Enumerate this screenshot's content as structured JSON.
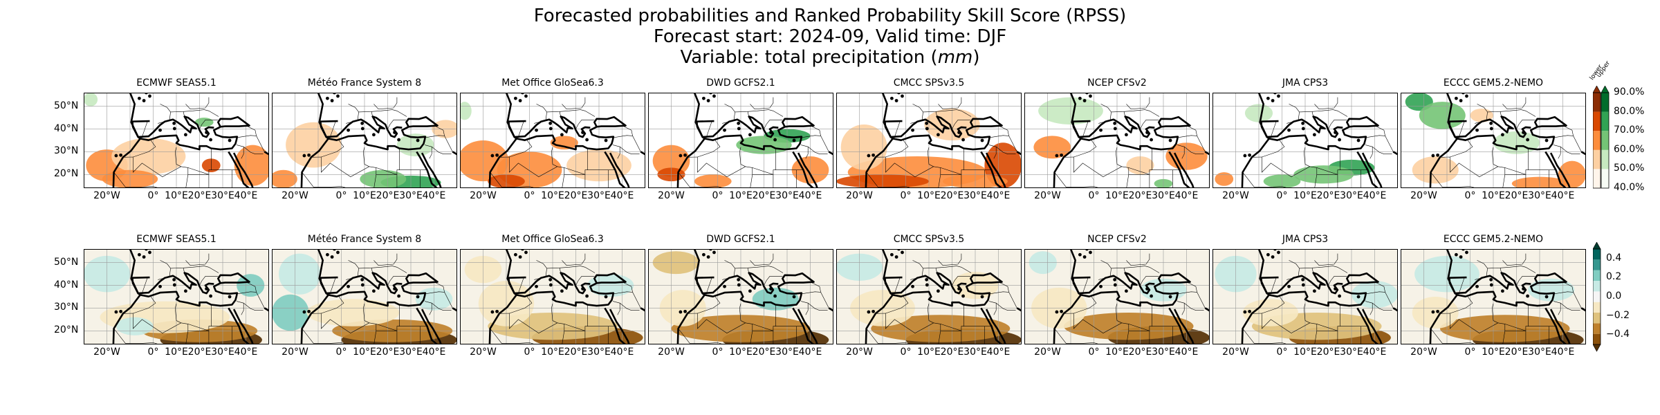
{
  "title": {
    "line1": "Forecasted probabilities and Ranked Probability Skill Score (RPSS)",
    "line2": "Forecast start: 2024-09, Valid time: DJF",
    "line3_prefix": "Variable: total precipitation (",
    "line3_unit": "mm",
    "line3_suffix": ")"
  },
  "models": [
    "ECMWF SEAS5.1",
    "Météo France System 8",
    "Met Office GloSea6.3",
    "DWD GCFS2.1",
    "CMCC SPSv3.5",
    "NCEP CFSv2",
    "JMA CPS3",
    "ECCC GEM5.2-NEMO"
  ],
  "map_axes": {
    "lat_ticks": [
      "50°N",
      "40°N",
      "30°N",
      "20°N"
    ],
    "lon_ticks": [
      "20°W",
      "0°",
      "10°E",
      "20°E",
      "30°E",
      "40°E"
    ],
    "lon_range": [
      -30,
      50
    ],
    "lat_range": [
      14,
      56
    ]
  },
  "probability_colorbar": {
    "category_labels": [
      "lower",
      "upper"
    ],
    "tick_labels": [
      "90.0%",
      "80.0%",
      "70.0%",
      "60.0%",
      "50.0%",
      "40.0%"
    ],
    "upper_colors": [
      "#f7fcf5",
      "#c7e9c0",
      "#74c476",
      "#31a354",
      "#006d2c"
    ],
    "lower_colors": [
      "#fff5eb",
      "#fdd0a2",
      "#fd8d3c",
      "#d94801",
      "#8c2d04"
    ]
  },
  "rpss_colorbar": {
    "tick_labels": [
      "0.4",
      "0.2",
      "0.0",
      "−0.2",
      "−0.4"
    ],
    "colors": [
      "#543005",
      "#8c510a",
      "#bf812d",
      "#dfc27d",
      "#f6e8c3",
      "#f5f5f5",
      "#c7eae5",
      "#80cdc1",
      "#35978f",
      "#01665e",
      "#003c30"
    ]
  }
}
